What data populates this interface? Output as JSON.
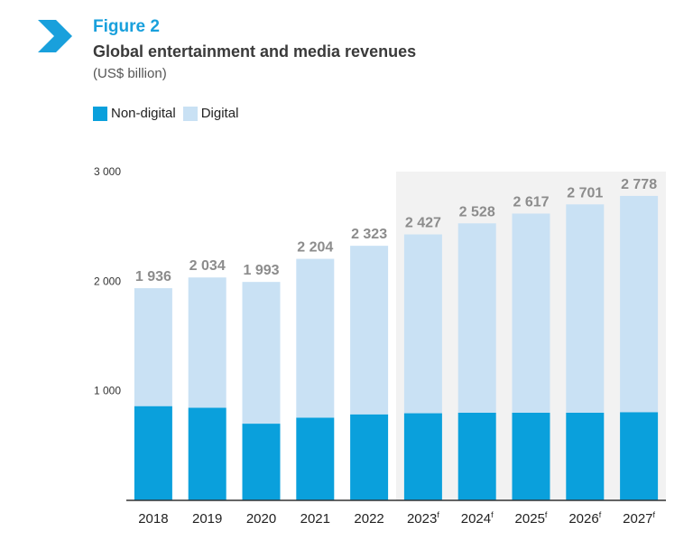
{
  "figure_label": "Figure 2",
  "title": "Global entertainment and media revenues",
  "subtitle": "(US$ billion)",
  "icons": {
    "header": "chevron-right-icon"
  },
  "colors": {
    "non_digital": "#0aa0dc",
    "digital": "#c9e1f4",
    "forecast_bg": "#f2f2f2",
    "accent": "#19a0dc",
    "total_label": "#8c8c8c"
  },
  "legend": [
    {
      "label": "Non-digital",
      "key": "non_digital"
    },
    {
      "label": "Digital",
      "key": "digital"
    }
  ],
  "chart_data": {
    "type": "bar",
    "stacked": true,
    "categories": [
      "2018",
      "2019",
      "2020",
      "2021",
      "2022",
      "2023",
      "2024",
      "2025",
      "2026",
      "2027"
    ],
    "forecast_marker": "f",
    "forecast_flags": [
      false,
      false,
      false,
      false,
      false,
      true,
      true,
      true,
      true,
      true
    ],
    "series": [
      {
        "name": "Non-digital",
        "values": [
          860,
          845,
          700,
          755,
          785,
          795,
          800,
          800,
          800,
          805
        ]
      },
      {
        "name": "Digital",
        "values": [
          1076,
          1189,
          1293,
          1449,
          1538,
          1632,
          1728,
          1817,
          1901,
          1973
        ]
      }
    ],
    "totals": [
      1936,
      2034,
      1993,
      2204,
      2323,
      2427,
      2528,
      2617,
      2701,
      2778
    ],
    "total_labels": [
      "1 936",
      "2 034",
      "1 993",
      "2 204",
      "2 323",
      "2 427",
      "2 528",
      "2 617",
      "2 701",
      "2 778"
    ],
    "yticks": [
      1000,
      2000,
      3000
    ],
    "ytick_labels": [
      "1 000",
      "2 000",
      "3 000"
    ],
    "ylim": [
      0,
      3000
    ],
    "xlabel": "",
    "ylabel": "",
    "legend_position": "top-left"
  }
}
